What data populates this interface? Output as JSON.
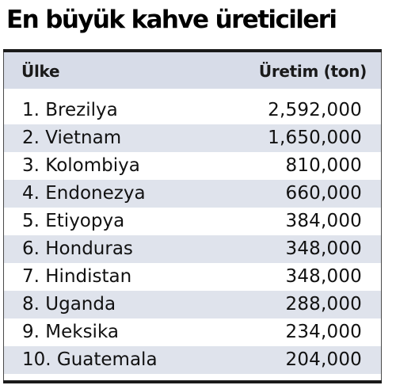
{
  "title": "En büyük kahve üreticileri",
  "table": {
    "headers": {
      "country": "Ülke",
      "production": "Üretim (ton)"
    },
    "rows": [
      {
        "country": "1. Brezilya",
        "production": "2,592,000"
      },
      {
        "country": "2. Vietnam",
        "production": "1,650,000"
      },
      {
        "country": "3. Kolombiya",
        "production": "810,000"
      },
      {
        "country": "4. Endonezya",
        "production": "660,000"
      },
      {
        "country": "5. Etiyopya",
        "production": "384,000"
      },
      {
        "country": "6. Honduras",
        "production": "348,000"
      },
      {
        "country": "7. Hindistan",
        "production": "348,000"
      },
      {
        "country": "8. Uganda",
        "production": "288,000"
      },
      {
        "country": "9. Meksika",
        "production": "234,000"
      },
      {
        "country": "10. Guatemala",
        "production": "204,000"
      }
    ]
  },
  "colors": {
    "header_background": "#d7dce8",
    "alternate_row_background": "#dfe3ec",
    "rule": "#1a1a1a"
  }
}
